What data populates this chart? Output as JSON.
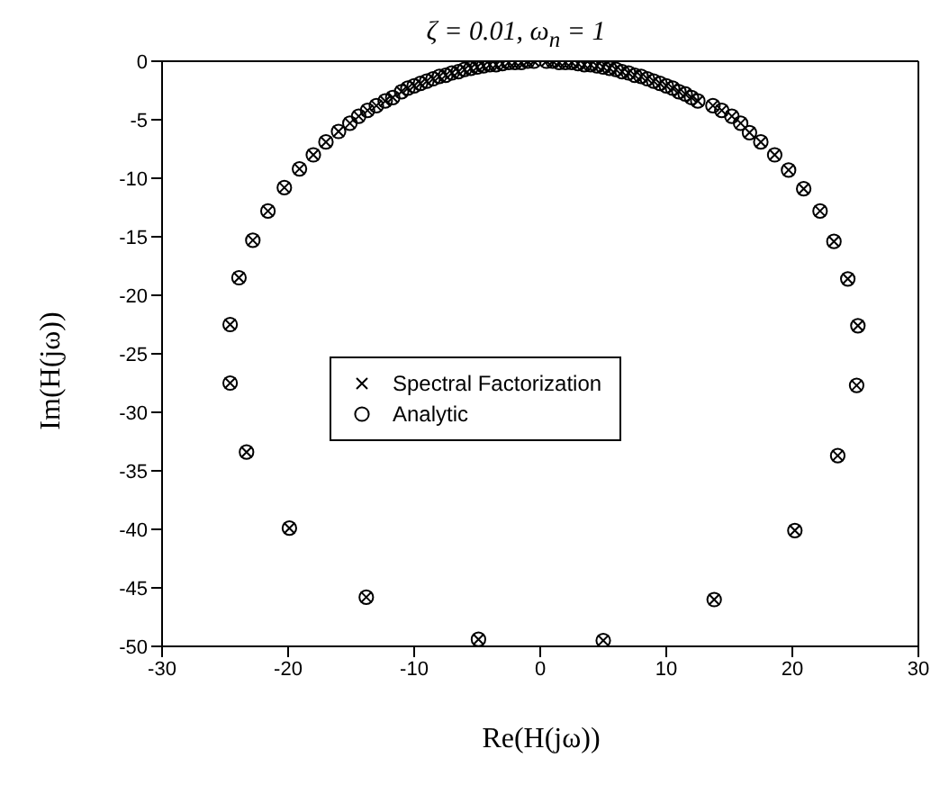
{
  "chart_data": {
    "type": "scatter",
    "title": "ζ = 0.01, ω$_{n}$ = 1",
    "xlabel": "Re(H(jω))",
    "ylabel": "Im(H(jω))",
    "x": [
      -4.9,
      -13.8,
      -19.9,
      -23.3,
      -24.6,
      -24.6,
      -23.9,
      -22.8,
      -21.6,
      -20.3,
      -19.1,
      -18.0,
      -17.0,
      -16.0,
      -15.1,
      -14.4,
      -13.7,
      -13.0,
      -12.3,
      -11.7,
      -11,
      -10.5,
      -10,
      -9.5,
      -9,
      -8.5,
      -8,
      -7.5,
      -7,
      -6.5,
      -6,
      -5.5,
      -5,
      -4.5,
      -4,
      -3.5,
      -3,
      -2.5,
      -2,
      -1.5,
      -1,
      -0.5,
      0.5,
      1,
      1.5,
      2,
      2.5,
      3,
      3.5,
      4,
      4.5,
      5,
      5.5,
      6,
      6.5,
      7,
      7.5,
      8,
      8.5,
      9,
      9.5,
      10,
      10.5,
      11,
      11.5,
      12,
      12.5,
      13.7,
      14.4,
      15.2,
      15.9,
      16.6,
      17.5,
      18.6,
      19.7,
      20.9,
      22.2,
      23.3,
      24.4,
      25.2,
      25.1,
      23.6,
      20.2,
      13.8,
      5.0
    ],
    "series": [
      {
        "name": "Spectral Factorization",
        "color": "#000000",
        "marker": "cross",
        "values": [
          -49.4,
          -45.8,
          -39.9,
          -33.4,
          -27.5,
          -22.5,
          -18.5,
          -15.3,
          -12.8,
          -10.8,
          -9.2,
          -8.0,
          -6.9,
          -6.0,
          -5.3,
          -4.7,
          -4.2,
          -3.8,
          -3.4,
          -3.1,
          -2.6,
          -2.3,
          -2.1,
          -1.9,
          -1.7,
          -1.5,
          -1.3,
          -1.2,
          -1.0,
          -0.9,
          -0.7,
          -0.6,
          -0.5,
          -0.4,
          -0.3,
          -0.3,
          -0.2,
          -0.1,
          -0.1,
          -0.1,
          0,
          0,
          0,
          0,
          -0.1,
          -0.1,
          -0.1,
          -0.2,
          -0.3,
          -0.3,
          -0.4,
          -0.5,
          -0.6,
          -0.7,
          -0.9,
          -1.0,
          -1.2,
          -1.3,
          -1.5,
          -1.7,
          -1.9,
          -2.1,
          -2.3,
          -2.6,
          -2.8,
          -3.1,
          -3.4,
          -3.8,
          -4.2,
          -4.7,
          -5.3,
          -6.1,
          -6.9,
          -8.0,
          -9.3,
          -10.9,
          -12.8,
          -15.4,
          -18.6,
          -22.6,
          -27.7,
          -33.7,
          -40.1,
          -46.0,
          -49.5
        ]
      },
      {
        "name": "Analytic",
        "color": "#000000",
        "marker": "circle",
        "values": [
          -49.4,
          -45.8,
          -39.9,
          -33.4,
          -27.5,
          -22.5,
          -18.5,
          -15.3,
          -12.8,
          -10.8,
          -9.2,
          -8.0,
          -6.9,
          -6.0,
          -5.3,
          -4.7,
          -4.2,
          -3.8,
          -3.4,
          -3.1,
          -2.6,
          -2.3,
          -2.1,
          -1.9,
          -1.7,
          -1.5,
          -1.3,
          -1.2,
          -1.0,
          -0.9,
          -0.7,
          -0.6,
          -0.5,
          -0.4,
          -0.3,
          -0.3,
          -0.2,
          -0.1,
          -0.1,
          -0.1,
          0,
          0,
          0,
          0,
          -0.1,
          -0.1,
          -0.1,
          -0.2,
          -0.3,
          -0.3,
          -0.4,
          -0.5,
          -0.6,
          -0.7,
          -0.9,
          -1.0,
          -1.2,
          -1.3,
          -1.5,
          -1.7,
          -1.9,
          -2.1,
          -2.3,
          -2.6,
          -2.8,
          -3.1,
          -3.4,
          -3.8,
          -4.2,
          -4.7,
          -5.3,
          -6.1,
          -6.9,
          -8.0,
          -9.3,
          -10.9,
          -12.8,
          -15.4,
          -18.6,
          -22.6,
          -27.7,
          -33.7,
          -40.1,
          -46.0,
          -49.5
        ]
      }
    ],
    "xlim": [
      -30,
      30
    ],
    "xticks": [
      -30,
      -20,
      -10,
      0,
      10,
      20,
      30
    ],
    "ylim": [
      -50,
      0
    ],
    "yticks": [
      -50,
      -45,
      -40,
      -35,
      -30,
      -25,
      -20,
      -15,
      -10,
      -5,
      0
    ],
    "grid": false,
    "legend": "center"
  }
}
